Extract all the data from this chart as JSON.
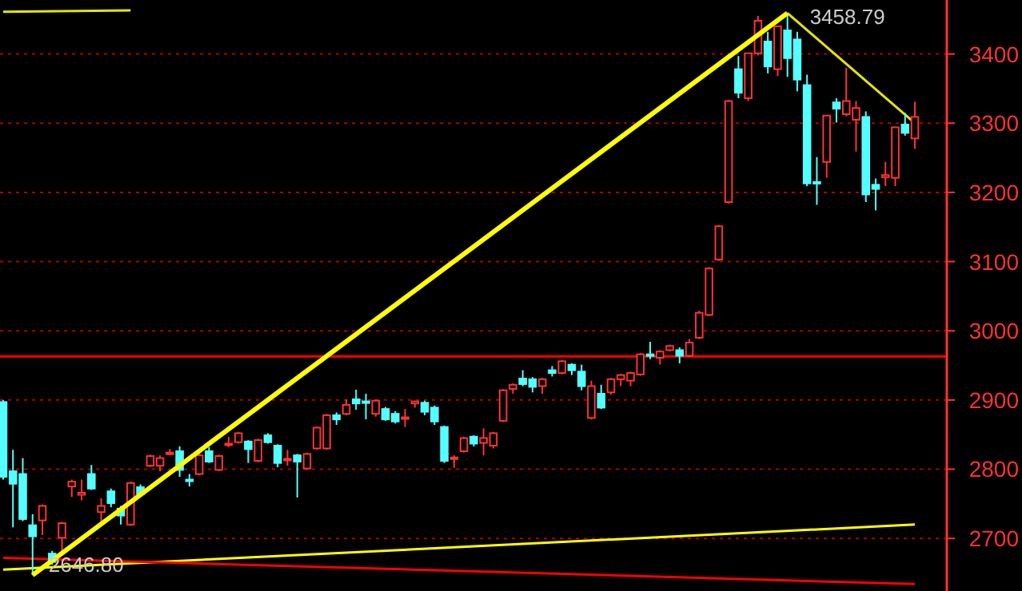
{
  "chart_data": {
    "type": "candlestick",
    "categories": [
      null,
      null,
      null,
      null,
      null,
      null,
      null,
      null,
      null,
      null,
      null,
      null,
      null,
      null,
      null,
      null,
      null,
      null,
      null,
      null,
      null,
      null,
      null,
      null,
      null,
      null,
      null,
      null,
      null,
      null,
      null,
      null,
      null,
      null,
      null,
      null,
      null,
      null,
      null,
      null,
      null,
      null,
      null,
      null,
      null,
      null,
      null,
      null,
      null,
      null,
      null,
      null,
      null,
      null,
      null,
      null,
      null,
      null,
      null,
      null,
      null,
      null,
      null,
      null,
      null,
      null,
      null,
      null,
      null,
      null,
      null,
      null,
      null,
      null,
      null,
      null,
      null,
      null,
      null,
      null,
      null,
      null,
      null,
      null,
      null,
      null,
      null,
      null,
      null,
      null,
      null,
      null,
      null,
      null
    ],
    "ohlc": [
      [
        2897,
        2900,
        2785,
        2789
      ],
      [
        2797,
        2828,
        2716,
        2779
      ],
      [
        2793,
        2816,
        2725,
        2728
      ],
      [
        2719,
        2735,
        2646.8,
        2703
      ],
      [
        2726,
        2749,
        2705,
        2747
      ],
      [
        2678,
        2682,
        2662,
        2666
      ],
      [
        2701,
        2724,
        2678,
        2722
      ],
      [
        2775,
        2785,
        2760,
        2782
      ],
      [
        2763,
        2785,
        2755,
        2766
      ],
      [
        2793,
        2806,
        2770,
        2772
      ],
      [
        2738,
        2758,
        2724,
        2747
      ],
      [
        2768,
        2772,
        2745,
        2751
      ],
      [
        2743,
        2747,
        2720,
        2733
      ],
      [
        2720,
        2782,
        2718,
        2780
      ],
      [
        2774,
        2778,
        2761,
        2764
      ],
      [
        2805,
        2821,
        2803,
        2819
      ],
      [
        2805,
        2820,
        2797,
        2816
      ],
      [
        2823,
        2829,
        2820,
        2824
      ],
      [
        2826,
        2833,
        2789,
        2799
      ],
      [
        2785,
        2793,
        2775,
        2783
      ],
      [
        2793,
        2824,
        2791,
        2820
      ],
      [
        2826,
        2832,
        2809,
        2811
      ],
      [
        2799,
        2821,
        2797,
        2819
      ],
      [
        2836,
        2847,
        2832,
        2837
      ],
      [
        2839,
        2854,
        2837,
        2852
      ],
      [
        2840,
        2842,
        2809,
        2829
      ],
      [
        2812,
        2844,
        2810,
        2842
      ],
      [
        2849,
        2852,
        2837,
        2839
      ],
      [
        2834,
        2836,
        2803,
        2809
      ],
      [
        2814,
        2828,
        2805,
        2815
      ],
      [
        2820,
        2822,
        2759,
        2811
      ],
      [
        2801,
        2824,
        2799,
        2822
      ],
      [
        2830,
        2862,
        2828,
        2860
      ],
      [
        2830,
        2880,
        2828,
        2878
      ],
      [
        2878,
        2882,
        2864,
        2872
      ],
      [
        2880,
        2901,
        2878,
        2893
      ],
      [
        2901,
        2915,
        2886,
        2895
      ],
      [
        2898,
        2909,
        2872,
        2896
      ],
      [
        2880,
        2901,
        2876,
        2899
      ],
      [
        2887,
        2890,
        2870,
        2872
      ],
      [
        2880,
        2884,
        2866,
        2869
      ],
      [
        2874,
        2887,
        2861,
        2875
      ],
      [
        2895,
        2899,
        2889,
        2898
      ],
      [
        2896,
        2899,
        2878,
        2883
      ],
      [
        2889,
        2892,
        2864,
        2869
      ],
      [
        2861,
        2863,
        2809,
        2812
      ],
      [
        2815,
        2820,
        2802,
        2817
      ],
      [
        2826,
        2847,
        2824,
        2845
      ],
      [
        2847,
        2849,
        2833,
        2837
      ],
      [
        2838,
        2859,
        2820,
        2845
      ],
      [
        2834,
        2854,
        2830,
        2852
      ],
      [
        2870,
        2916,
        2868,
        2914
      ],
      [
        2916,
        2924,
        2909,
        2922
      ],
      [
        2931,
        2943,
        2920,
        2923
      ],
      [
        2930,
        2933,
        2911,
        2919
      ],
      [
        2920,
        2932,
        2909,
        2930
      ],
      [
        2943,
        2949,
        2934,
        2939
      ],
      [
        2939,
        2958,
        2937,
        2956
      ],
      [
        2951,
        2953,
        2936,
        2943
      ],
      [
        2941,
        2951,
        2914,
        2920
      ],
      [
        2874,
        2928,
        2872,
        2920
      ],
      [
        2909,
        2922,
        2887,
        2889
      ],
      [
        2911,
        2932,
        2908,
        2930
      ],
      [
        2930,
        2938,
        2920,
        2936
      ],
      [
        2928,
        2941,
        2920,
        2939
      ],
      [
        2937,
        2968,
        2935,
        2966
      ],
      [
        2966,
        2984,
        2959,
        2965
      ],
      [
        2961,
        2972,
        2951,
        2970
      ],
      [
        2972,
        2980,
        2970,
        2978
      ],
      [
        2972,
        2976,
        2953,
        2964
      ],
      [
        2964,
        2988,
        2962,
        2983
      ],
      [
        2990,
        3029,
        2988,
        3026
      ],
      [
        3023,
        3092,
        3021,
        3090
      ],
      [
        3103,
        3153,
        3101,
        3151
      ],
      [
        3186,
        3334,
        3184,
        3332
      ],
      [
        3378,
        3397,
        3336,
        3344
      ],
      [
        3336,
        3401,
        3332,
        3401
      ],
      [
        3401,
        3455,
        3398,
        3448
      ],
      [
        3418,
        3432,
        3372,
        3382
      ],
      [
        3378,
        3440,
        3368,
        3440
      ],
      [
        3434,
        3458.79,
        3367,
        3394
      ],
      [
        3421,
        3432,
        3346,
        3363
      ],
      [
        3355,
        3370,
        3209,
        3213
      ],
      [
        3215,
        3251,
        3182,
        3213
      ],
      [
        3244,
        3311,
        3221,
        3311
      ],
      [
        3330,
        3336,
        3301,
        3321
      ],
      [
        3313,
        3380,
        3310,
        3332
      ],
      [
        3305,
        3332,
        3259,
        3322
      ],
      [
        3309,
        3317,
        3186,
        3197
      ],
      [
        3211,
        3220,
        3174,
        3205
      ],
      [
        3222,
        3244,
        3209,
        3225
      ],
      [
        3221,
        3294,
        3209,
        3294
      ],
      [
        3298,
        3315,
        3282,
        3286
      ],
      [
        3278,
        3331,
        3263,
        3309
      ]
    ],
    "series": [
      {
        "type": "line",
        "color": "#ffff00",
        "values": [
          null,
          null,
          null,
          2647,
          null,
          null,
          null,
          null,
          null,
          null,
          null,
          null,
          null,
          null,
          null,
          null,
          null,
          null,
          null,
          null,
          null,
          null,
          null,
          null,
          null,
          null,
          null,
          null,
          null,
          null,
          null,
          null,
          null,
          null,
          null,
          null,
          null,
          null,
          null,
          null,
          null,
          null,
          null,
          null,
          null,
          null,
          null,
          null,
          null,
          null,
          null,
          null,
          null,
          null,
          null,
          null,
          null,
          null,
          null,
          null,
          null,
          null,
          null,
          null,
          null,
          null,
          null,
          null,
          null,
          null,
          null,
          null,
          null,
          null,
          null,
          null,
          null,
          null,
          null,
          null,
          3459,
          null,
          null,
          null,
          null,
          null,
          null,
          null,
          null,
          null,
          null,
          null,
          null,
          null
        ]
      },
      {
        "type": "line",
        "color": "#e6e600",
        "values": [
          null,
          null,
          null,
          null,
          null,
          null,
          null,
          null,
          null,
          null,
          null,
          null,
          null,
          null,
          null,
          null,
          null,
          null,
          null,
          null,
          null,
          null,
          null,
          null,
          null,
          null,
          null,
          null,
          null,
          null,
          null,
          null,
          null,
          null,
          null,
          null,
          null,
          null,
          null,
          null,
          null,
          null,
          null,
          null,
          null,
          null,
          null,
          null,
          null,
          null,
          null,
          null,
          null,
          null,
          null,
          null,
          null,
          null,
          null,
          null,
          null,
          null,
          null,
          null,
          null,
          null,
          null,
          null,
          null,
          null,
          null,
          null,
          null,
          null,
          null,
          null,
          null,
          null,
          null,
          null,
          3459,
          null,
          null,
          null,
          null,
          null,
          null,
          null,
          null,
          null,
          null,
          null,
          null,
          3300
        ]
      },
      {
        "type": "line",
        "color": "#ffff00",
        "values": [
          2655,
          null,
          null,
          null,
          null,
          null,
          null,
          null,
          null,
          null,
          null,
          null,
          null,
          null,
          null,
          null,
          null,
          null,
          null,
          null,
          null,
          null,
          null,
          null,
          null,
          null,
          null,
          null,
          null,
          null,
          null,
          null,
          null,
          null,
          null,
          null,
          null,
          null,
          null,
          null,
          null,
          null,
          null,
          null,
          null,
          null,
          null,
          null,
          null,
          null,
          null,
          null,
          null,
          null,
          null,
          null,
          null,
          null,
          null,
          null,
          null,
          null,
          null,
          null,
          null,
          null,
          null,
          null,
          null,
          null,
          null,
          null,
          null,
          null,
          null,
          null,
          null,
          null,
          null,
          null,
          null,
          null,
          null,
          null,
          null,
          null,
          null,
          null,
          null,
          null,
          null,
          null,
          null,
          2720
        ]
      },
      {
        "type": "line",
        "color": "#ff0000",
        "values": [
          2672,
          null,
          null,
          null,
          null,
          null,
          null,
          null,
          null,
          null,
          null,
          null,
          null,
          null,
          null,
          null,
          null,
          null,
          null,
          null,
          null,
          null,
          null,
          null,
          null,
          null,
          null,
          null,
          null,
          null,
          null,
          null,
          null,
          null,
          null,
          null,
          null,
          null,
          null,
          null,
          null,
          null,
          null,
          null,
          null,
          null,
          null,
          null,
          null,
          null,
          null,
          null,
          null,
          null,
          null,
          null,
          null,
          null,
          null,
          null,
          null,
          null,
          null,
          null,
          null,
          null,
          null,
          null,
          null,
          null,
          null,
          null,
          null,
          null,
          null,
          null,
          null,
          null,
          null,
          null,
          null,
          null,
          null,
          null,
          null,
          null,
          null,
          null,
          null,
          null,
          null,
          null,
          null,
          2634
        ]
      },
      {
        "type": "line",
        "color": "#e6e600",
        "values": [
          3461,
          null,
          null,
          null,
          null,
          null,
          null,
          null,
          null,
          null,
          null,
          null,
          null,
          3463,
          null,
          null,
          null,
          null,
          null,
          null,
          null,
          null,
          null,
          null,
          null,
          null,
          null,
          null,
          null,
          null,
          null,
          null,
          null,
          null,
          null,
          null,
          null,
          null,
          null,
          null,
          null,
          null,
          null,
          null,
          null,
          null,
          null,
          null,
          null,
          null,
          null,
          null,
          null,
          null,
          null,
          null,
          null,
          null,
          null,
          null,
          null,
          null,
          null,
          null,
          null,
          null,
          null,
          null,
          null,
          null,
          null,
          null,
          null,
          null,
          null,
          null,
          null,
          null,
          null,
          null,
          null,
          null,
          null,
          null,
          null,
          null,
          null,
          null,
          null,
          null,
          null,
          null,
          null,
          null
        ]
      }
    ],
    "ref_lines": [
      {
        "axis": "y",
        "value": 2963,
        "color": "#ff0000"
      }
    ],
    "annotations": [
      "3458.79",
      "2646.80"
    ],
    "ylim": [
      2624,
      3478
    ],
    "yticks": [
      2700,
      2800,
      2900,
      3000,
      3100,
      3200,
      3300,
      3400
    ],
    "grid": "y",
    "tick_labels": "y"
  }
}
